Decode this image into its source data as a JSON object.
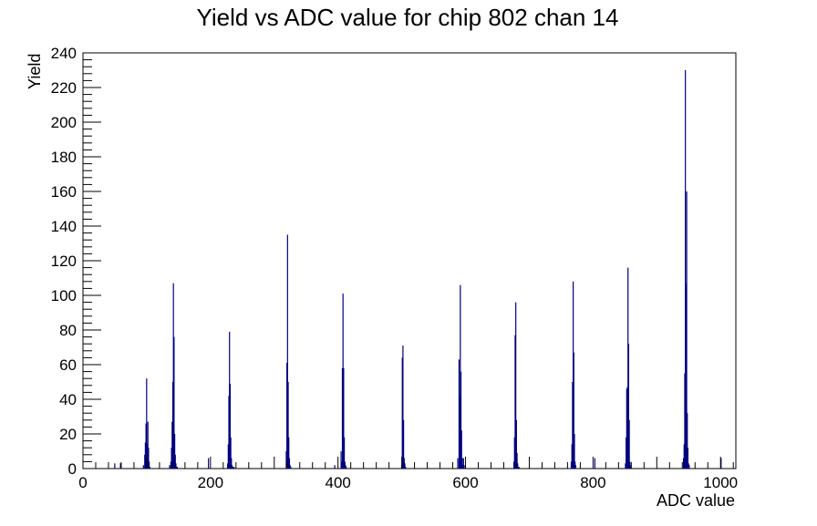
{
  "chart_data": {
    "type": "bar",
    "title": "Yield vs ADC value for chip 802 chan 14",
    "xlabel": "ADC value",
    "ylabel": "Yield",
    "xlim": [
      0,
      1024
    ],
    "ylim": [
      0,
      240
    ],
    "grid": false,
    "legend": "none",
    "bar_color": "#000080",
    "x_ticks": [
      0,
      200,
      400,
      600,
      800,
      1000
    ],
    "y_ticks": [
      0,
      20,
      40,
      60,
      80,
      100,
      120,
      140,
      160,
      180,
      200,
      220,
      240
    ],
    "x": [
      49,
      58,
      94,
      96,
      97,
      98,
      99,
      100,
      101,
      102,
      103,
      104,
      135,
      137,
      138,
      139,
      140,
      141,
      142,
      143,
      144,
      145,
      146,
      147,
      196,
      226,
      227,
      228,
      229,
      230,
      231,
      232,
      233,
      234,
      235,
      236,
      318,
      319,
      320,
      321,
      322,
      323,
      324,
      325,
      394,
      404,
      405,
      406,
      407,
      408,
      409,
      410,
      411,
      412,
      499,
      500,
      501,
      502,
      503,
      504,
      505,
      587,
      589,
      590,
      591,
      592,
      593,
      594,
      595,
      596,
      597,
      675,
      676,
      677,
      678,
      679,
      680,
      681,
      682,
      683,
      765,
      766,
      767,
      768,
      769,
      770,
      771,
      772,
      802,
      850,
      851,
      852,
      853,
      854,
      855,
      856,
      857,
      858,
      941,
      942,
      943,
      944,
      945,
      946,
      947,
      948,
      949,
      950,
      1000
    ],
    "values": [
      3,
      3,
      2,
      8,
      15,
      26,
      52,
      14,
      27,
      12,
      4,
      1,
      2,
      4,
      12,
      27,
      50,
      107,
      76,
      20,
      8,
      3,
      1,
      1,
      6,
      3,
      14,
      42,
      79,
      49,
      18,
      6,
      2,
      1,
      1,
      1,
      10,
      61,
      135,
      50,
      18,
      6,
      2,
      1,
      2,
      10,
      4,
      58,
      101,
      58,
      18,
      4,
      2,
      1,
      2,
      64,
      71,
      28,
      6,
      3,
      1,
      6,
      63,
      42,
      106,
      56,
      22,
      6,
      2,
      6,
      2,
      4,
      18,
      77,
      96,
      28,
      9,
      3,
      1,
      1,
      4,
      14,
      50,
      108,
      67,
      20,
      4,
      2,
      6,
      3,
      18,
      46,
      47,
      116,
      72,
      28,
      4,
      2,
      6,
      14,
      55,
      230,
      107,
      160,
      32,
      12,
      3,
      2,
      6
    ]
  }
}
